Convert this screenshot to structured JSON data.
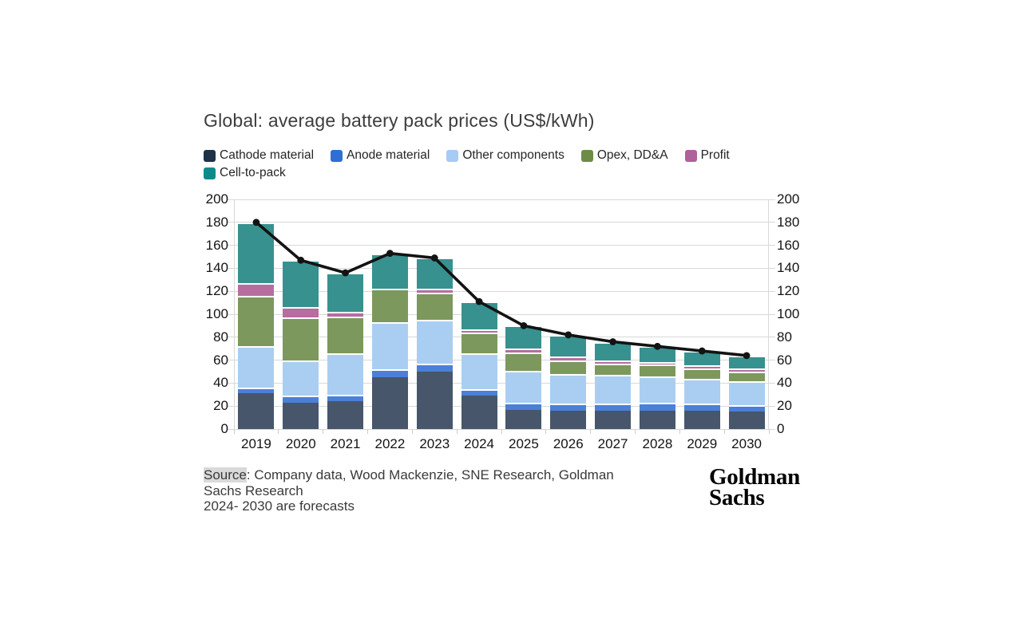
{
  "title": "Global: average battery pack prices (US$/kWh)",
  "source": {
    "highlight": "Source",
    "line1_rest": ": Company data, Wood Mackenzie, SNE Research, Goldman",
    "line2": "Sachs Research",
    "line3": "2024- 2030 are forecasts"
  },
  "logo": {
    "line1": "Goldman",
    "line2": "Sachs"
  },
  "chart_data": {
    "type": "bar",
    "subtype": "stacked-bar-with-line",
    "title": "Global: average battery pack prices (US$/kWh)",
    "categories": [
      "2019",
      "2020",
      "2021",
      "2022",
      "2023",
      "2024",
      "2025",
      "2026",
      "2027",
      "2028",
      "2029",
      "2030"
    ],
    "series": [
      {
        "name": "Cathode material",
        "color": "#1d3147",
        "bar_color": "#47566b",
        "values": [
          31,
          23,
          24,
          45,
          50,
          29,
          17,
          16,
          16,
          16,
          16,
          15
        ]
      },
      {
        "name": "Anode material",
        "color": "#2e6fd6",
        "bar_color": "#4a80d8",
        "values": [
          5,
          6,
          6,
          7,
          7,
          6,
          6,
          6,
          6,
          7,
          6,
          6
        ]
      },
      {
        "name": "Other components",
        "color": "#a6cbf5",
        "bar_color": "#aacef2",
        "values": [
          36,
          31,
          36,
          41,
          38,
          31,
          28,
          26,
          25,
          23,
          22,
          21
        ]
      },
      {
        "name": "Opex, DD&A",
        "color": "#6d8c45",
        "bar_color": "#7c985c",
        "values": [
          44,
          37,
          32,
          29,
          24,
          18,
          16,
          12,
          10,
          10,
          9,
          8
        ]
      },
      {
        "name": "Profit",
        "color": "#b0609a",
        "bar_color": "#b76da0",
        "values": [
          11,
          9,
          4,
          0,
          3,
          3,
          3,
          3,
          2.5,
          2.5,
          2.5,
          2.5
        ]
      },
      {
        "name": "Cell-to-pack",
        "color": "#0c8b8d",
        "bar_color": "#37918f",
        "values": [
          53,
          41,
          34,
          31,
          27,
          24,
          20,
          19,
          16.5,
          13.5,
          12.5,
          11.5
        ]
      }
    ],
    "line": {
      "name": "Average battery pack price",
      "color": "#131313",
      "values": [
        180,
        147,
        136,
        153,
        149,
        111,
        90,
        82,
        76,
        72,
        68,
        64
      ]
    },
    "ylim": [
      0,
      200
    ],
    "yticks": [
      0,
      20,
      40,
      60,
      80,
      100,
      120,
      140,
      160,
      180,
      200
    ],
    "grid": true,
    "legend_position": "top",
    "y_axis_sides": "both"
  }
}
